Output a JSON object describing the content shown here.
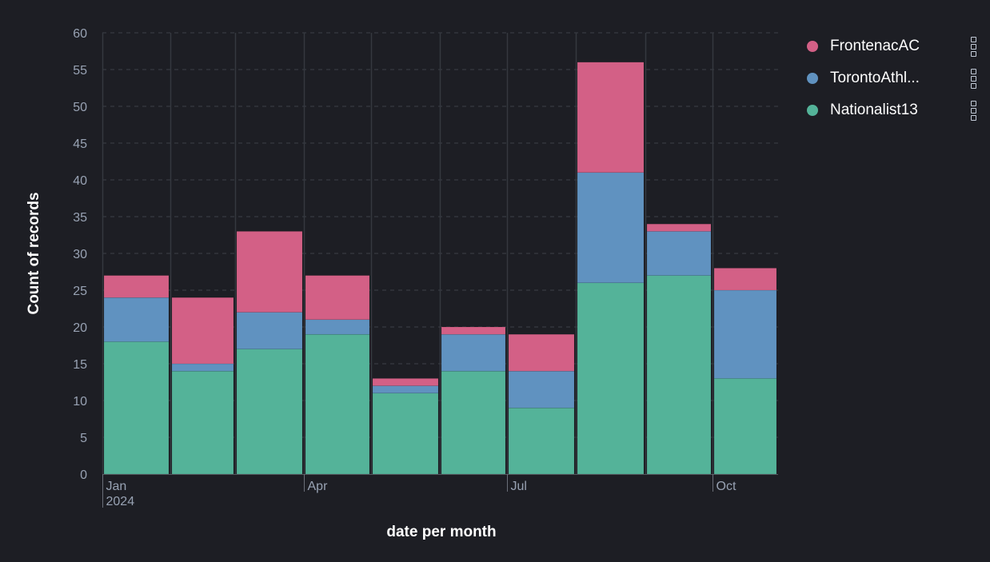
{
  "chart_data": {
    "type": "bar",
    "stacked": true,
    "categories": [
      "2024-01",
      "2024-02",
      "2024-03",
      "2024-04",
      "2024-05",
      "2024-06",
      "2024-07",
      "2024-08",
      "2024-09",
      "2024-10"
    ],
    "x_tick_labels": [
      {
        "category": "2024-01",
        "label": "Jan",
        "sublabel": "2024"
      },
      {
        "category": "2024-04",
        "label": "Apr",
        "sublabel": ""
      },
      {
        "category": "2024-07",
        "label": "Jul",
        "sublabel": ""
      },
      {
        "category": "2024-10",
        "label": "Oct",
        "sublabel": ""
      }
    ],
    "series": [
      {
        "name": "Nationalist13",
        "color": "#54b399",
        "values": [
          18,
          14,
          17,
          19,
          11,
          14,
          9,
          26,
          27,
          13
        ]
      },
      {
        "name": "TorontoAthl...",
        "color": "#6092c0",
        "values": [
          6,
          1,
          5,
          2,
          1,
          5,
          5,
          15,
          6,
          12
        ]
      },
      {
        "name": "FrontenacAC",
        "color": "#d36086",
        "values": [
          3,
          9,
          11,
          6,
          1,
          1,
          5,
          15,
          1,
          3
        ]
      }
    ],
    "legend_order": [
      "FrontenacAC",
      "TorontoAthl...",
      "Nationalist13"
    ],
    "xlabel": "date per month",
    "ylabel": "Count of records",
    "ylim": [
      0,
      60
    ],
    "yticks": [
      0,
      5,
      10,
      15,
      20,
      25,
      30,
      35,
      40,
      45,
      50,
      55,
      60
    ],
    "grid": "horizontal dashed",
    "legend_position": "top-right"
  },
  "legend": {
    "actions_icon": "vertical-dots-icon"
  },
  "colors": {
    "background": "#1d1e24",
    "grid": "#3d4048",
    "tick_text": "#98a2b3",
    "axis_title": "#ffffff"
  }
}
